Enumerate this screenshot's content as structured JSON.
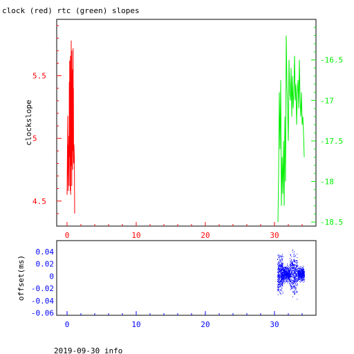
{
  "page": {
    "title": "clock (red) rtc (green) slopes",
    "footer": "2019-09-30 info"
  },
  "colors": {
    "axis": "#000000",
    "clock": "#ff0000",
    "rtc": "#00ee00",
    "offset": "#0000ff",
    "background": "#ffffff"
  },
  "chart_data": [
    {
      "type": "line",
      "title": "clock (red) rtc (green) slopes",
      "ylabel": "clockslope",
      "xlim": [
        -1.5,
        36
      ],
      "ylim": [
        4.3,
        5.95
      ],
      "y2lim": [
        -18.55,
        -16.0
      ],
      "x_ticks": [
        0,
        10,
        20,
        30
      ],
      "y_ticks": [
        4.5,
        5,
        5.5
      ],
      "y2_ticks": [
        -18.5,
        -18,
        -17.5,
        -17,
        -16.5
      ],
      "y_tick_labels": [
        "4.5",
        "5",
        "5.5"
      ],
      "y2_tick_labels": [
        "-18.5",
        "-18",
        "-17.5",
        "-17",
        "-16.5"
      ],
      "series": [
        {
          "axis": "left",
          "color": "#ff0000",
          "x": [
            0.0,
            0.05,
            0.1,
            0.12,
            0.15,
            0.2,
            0.22,
            0.25,
            0.3,
            0.32,
            0.35,
            0.38,
            0.4,
            0.42,
            0.45,
            0.48,
            0.5,
            0.52,
            0.55,
            0.58,
            0.6,
            0.62,
            0.65,
            0.68,
            0.7,
            0.72,
            0.75,
            0.78,
            0.8,
            0.82,
            0.85,
            0.88,
            0.9,
            0.92,
            0.95,
            1.0,
            1.05,
            1.1
          ],
          "y": [
            4.55,
            4.9,
            5.18,
            4.75,
            4.58,
            4.95,
            4.8,
            5.02,
            4.62,
            5.45,
            4.85,
            5.62,
            4.9,
            5.3,
            4.58,
            5.66,
            5.1,
            4.55,
            5.5,
            4.78,
            5.78,
            4.95,
            5.4,
            4.62,
            5.7,
            4.85,
            5.2,
            5.55,
            4.75,
            5.35,
            4.9,
            5.72,
            5.0,
            5.4,
            4.8,
            4.95,
            4.85,
            4.4
          ]
        },
        {
          "axis": "right",
          "color": "#00ee00",
          "x": [
            30.5,
            30.6,
            30.7,
            30.8,
            30.9,
            31.0,
            31.1,
            31.2,
            31.3,
            31.4,
            31.5,
            31.6,
            31.7,
            31.8,
            31.9,
            32.0,
            32.1,
            32.2,
            32.3,
            32.4,
            32.5,
            32.6,
            32.7,
            32.8,
            32.9,
            33.0,
            33.1,
            33.2,
            33.3,
            33.4,
            33.5,
            33.6,
            33.7,
            33.8,
            33.9,
            34.0,
            34.1,
            34.2,
            34.3
          ],
          "y": [
            -18.5,
            -17.9,
            -16.9,
            -17.6,
            -16.75,
            -18.3,
            -17.7,
            -18.15,
            -17.5,
            -18.3,
            -17.2,
            -18.0,
            -16.2,
            -16.8,
            -17.1,
            -17.5,
            -16.5,
            -16.9,
            -17.0,
            -16.6,
            -17.2,
            -16.7,
            -17.1,
            -16.9,
            -16.45,
            -17.0,
            -16.8,
            -17.3,
            -16.9,
            -16.75,
            -17.1,
            -16.5,
            -17.0,
            -17.2,
            -16.9,
            -17.3,
            -17.2,
            -17.4,
            -17.7
          ]
        }
      ]
    },
    {
      "type": "scatter",
      "ylabel": "offset(ms)",
      "xlim": [
        -1.5,
        36
      ],
      "ylim": [
        -0.064,
        0.058
      ],
      "x_ticks": [
        0,
        10,
        20,
        30
      ],
      "y_ticks": [
        -0.06,
        -0.04,
        -0.02,
        0,
        0.02,
        0.04
      ],
      "y_tick_labels": [
        "-0.06",
        "-0.04",
        "-0.02",
        "0",
        "0.02",
        "0.04"
      ],
      "series": [
        {
          "color": "#0000ff",
          "clusters": [
            {
              "x_range": [
                30.4,
                31.2
              ],
              "y_center": 0.003,
              "y_spread": 0.038
            },
            {
              "x_range": [
                31.2,
                32.2
              ],
              "y_center": 0.004,
              "y_spread": 0.018
            },
            {
              "x_range": [
                32.2,
                33.3
              ],
              "y_center": 0.004,
              "y_spread": 0.045
            },
            {
              "x_range": [
                33.3,
                34.3
              ],
              "y_center": 0.004,
              "y_spread": 0.016
            }
          ]
        }
      ]
    }
  ]
}
